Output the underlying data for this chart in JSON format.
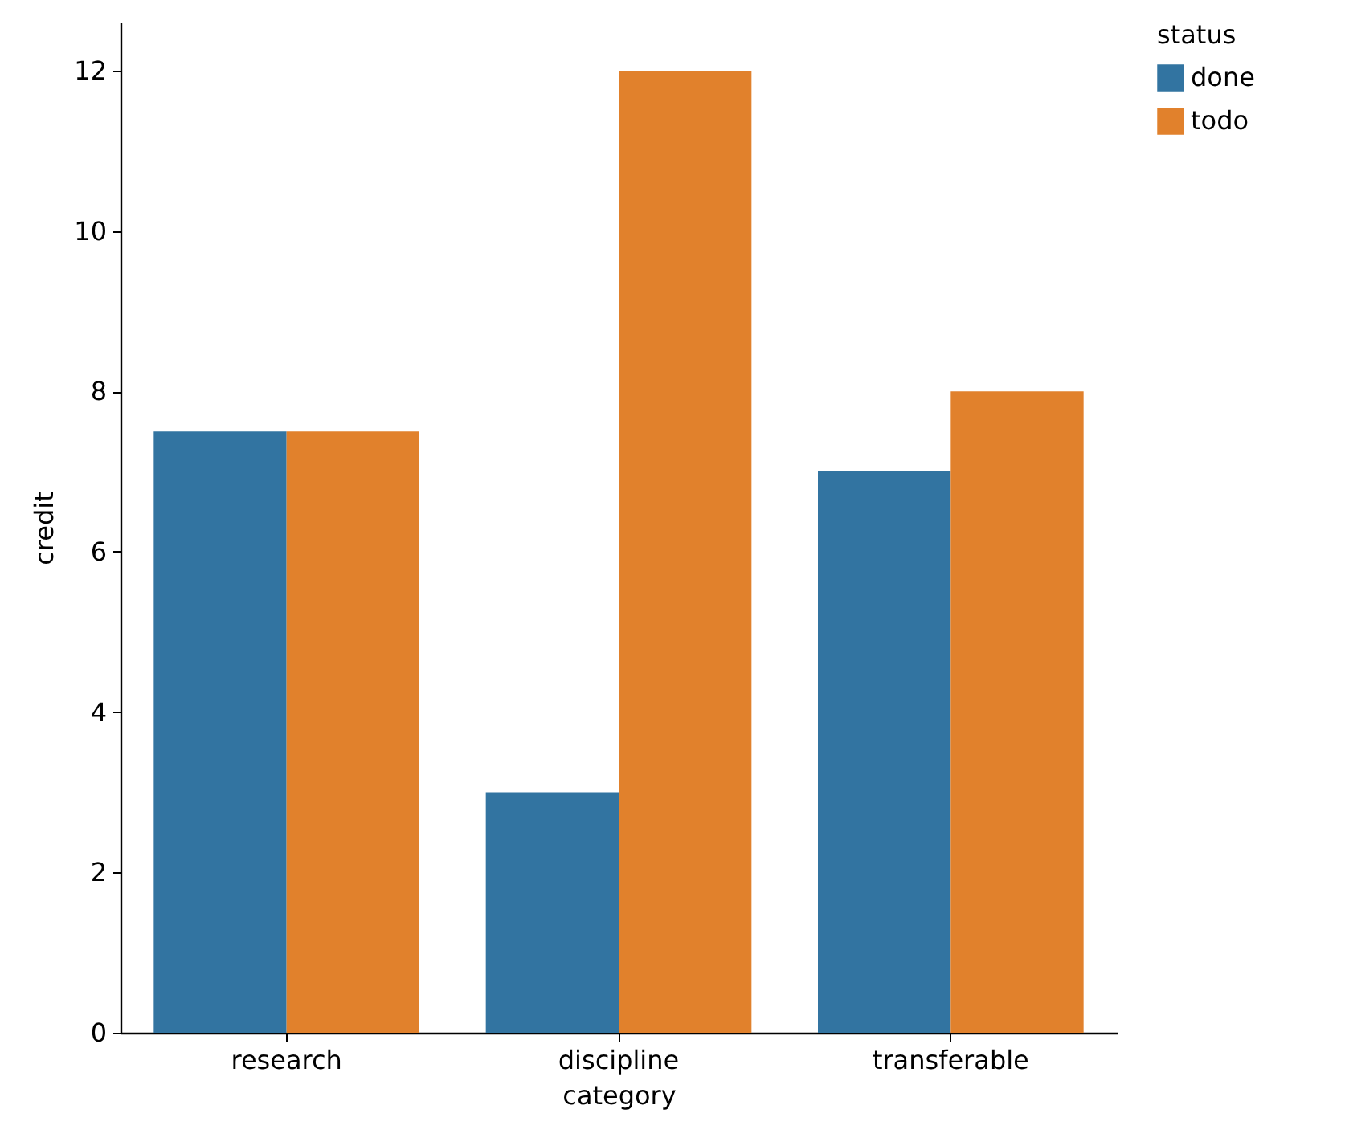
{
  "chart_data": {
    "type": "bar",
    "xlabel": "category",
    "ylabel": "credit",
    "legend_title": "status",
    "legend": "right",
    "categories": [
      "research",
      "discipline",
      "transferable"
    ],
    "series": [
      {
        "name": "done",
        "color": "#3274a1",
        "values": [
          7.5,
          3,
          7
        ]
      },
      {
        "name": "todo",
        "color": "#e1812c",
        "values": [
          7.5,
          12,
          8
        ]
      }
    ],
    "ylim": [
      0,
      12.6
    ],
    "yticks": [
      0,
      2,
      4,
      6,
      8,
      10,
      12
    ]
  }
}
